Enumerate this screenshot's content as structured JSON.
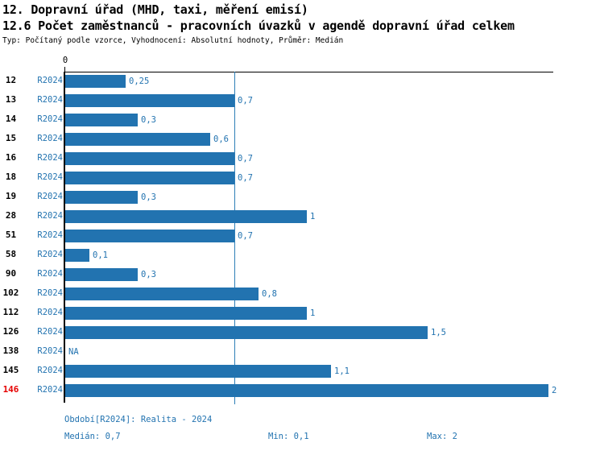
{
  "header": {
    "title1": "12. Dopravní úřad (MHD, taxi, měření emisí)",
    "title2": "12.6 Počet zaměstnanců - pracovních úvazků v agendě dopravní úřad celkem",
    "subtitle": "Typ: Počítaný podle vzorce, Vyhodnocení: Absolutní hodnoty, Průměr: Medián"
  },
  "chart_data": {
    "type": "bar",
    "orientation": "horizontal",
    "title": "12.6 Počet zaměstnanců - pracovních úvazků v agendě dopravní úřad celkem",
    "categories": [
      "12",
      "13",
      "14",
      "15",
      "16",
      "18",
      "19",
      "28",
      "51",
      "58",
      "90",
      "102",
      "112",
      "126",
      "138",
      "145",
      "146"
    ],
    "series": [
      {
        "name": "R2024",
        "values": [
          0.25,
          0.7,
          0.3,
          0.6,
          0.7,
          0.7,
          0.3,
          1,
          0.7,
          0.1,
          0.3,
          0.8,
          1,
          1.5,
          null,
          1.1,
          2
        ],
        "value_labels": [
          "0,25",
          "0,7",
          "0,3",
          "0,6",
          "0,7",
          "0,7",
          "0,3",
          "1",
          "0,7",
          "0,1",
          "0,3",
          "0,8",
          "1",
          "1,5",
          "NA",
          "1,1",
          "2"
        ]
      }
    ],
    "row_period_label": "R2024",
    "xlim": [
      0,
      2.02
    ],
    "x_tick_labels": [
      "0"
    ],
    "zero_tick_label": "0",
    "median_line_value": 0.7,
    "stats": {
      "median": 0.7,
      "min": 0.1,
      "max": 2
    },
    "highlighted_category": "146",
    "grid": false,
    "legend": "none",
    "colors": {
      "bar": "#2273b0",
      "median_line": "#2e7fb7",
      "label_blue": "#2273b0",
      "highlight_red": "#e60000",
      "axis_black": "#000000"
    }
  },
  "footer": {
    "period": "Období[R2024]: Realita - 2024",
    "median_label": "Medián: 0,7",
    "min_label": "Min: 0,1",
    "max_label": "Max: 2"
  }
}
